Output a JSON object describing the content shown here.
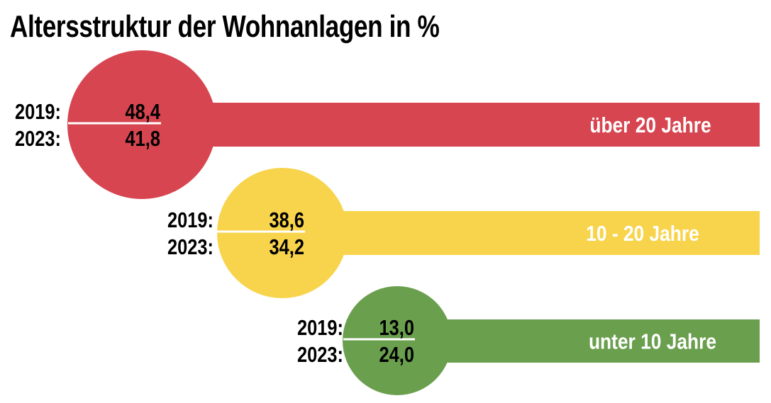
{
  "chart_data": {
    "type": "table",
    "title": "Altersstruktur der Wohnanlagen in %",
    "unit": "%",
    "years": [
      "2019:",
      "2023:"
    ],
    "categories": [
      {
        "name": "über 20 Jahre",
        "values": [
          "48,4",
          "41,8"
        ],
        "numeric": [
          48.4,
          41.8
        ],
        "color": "#d64550"
      },
      {
        "name": "10 - 20 Jahre",
        "values": [
          "38,6",
          "34,2"
        ],
        "numeric": [
          38.6,
          34.2
        ],
        "color": "#f8d44c"
      },
      {
        "name": "unter 10 Jahre",
        "values": [
          "13,0",
          "24,0"
        ],
        "numeric": [
          13.0,
          24.0
        ],
        "color": "#6a9f4e"
      }
    ],
    "series": [
      {
        "name": "2019",
        "values": [
          48.4,
          38.6,
          13.0
        ]
      },
      {
        "name": "2023",
        "values": [
          41.8,
          34.2,
          24.0
        ]
      }
    ],
    "legend": "none",
    "grid": false
  },
  "colors": {
    "divider": "#ffffff",
    "category_text": "#ffffff",
    "value_text": "#000000"
  }
}
